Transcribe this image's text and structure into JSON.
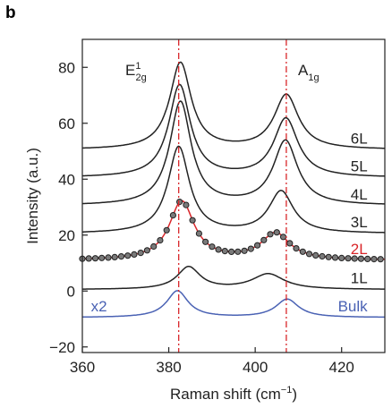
{
  "chart_data": {
    "type": "line",
    "panel_label": "b",
    "title": "",
    "xlabel": "Raman shift (cm⁻¹)",
    "ylabel": "Intensity (a.u.)",
    "xlim": [
      360,
      430
    ],
    "ylim": [
      -22,
      90
    ],
    "x_ticks": [
      360,
      380,
      400,
      420
    ],
    "y_ticks": [
      -20,
      0,
      20,
      40,
      60,
      80
    ],
    "peak_labels": [
      {
        "base": "E",
        "sub": "2g",
        "sup": "1",
        "x": 382.3
      },
      {
        "base": "A",
        "sub": "1g",
        "x": 407.2
      }
    ],
    "reference_lines_x": [
      382.3,
      407.2
    ],
    "reference_line_color": "#d9262a",
    "series": [
      {
        "name": "6L",
        "color": "#222222",
        "baseline": 50.5,
        "peaks": [
          {
            "x": 382.7,
            "height": 31,
            "width": 3.0
          },
          {
            "x": 407.2,
            "height": 19.5,
            "width": 3.4
          }
        ]
      },
      {
        "name": "5L",
        "color": "#222222",
        "baseline": 40.5,
        "peaks": [
          {
            "x": 382.5,
            "height": 33,
            "width": 3.0
          },
          {
            "x": 407.1,
            "height": 21,
            "width": 3.4
          }
        ]
      },
      {
        "name": "4L",
        "color": "#222222",
        "baseline": 30.5,
        "peaks": [
          {
            "x": 382.7,
            "height": 37,
            "width": 3.0
          },
          {
            "x": 407.0,
            "height": 23,
            "width": 3.4
          }
        ]
      },
      {
        "name": "3L",
        "color": "#222222",
        "baseline": 20.5,
        "peaks": [
          {
            "x": 382.3,
            "height": 31,
            "width": 3.0
          },
          {
            "x": 406.0,
            "height": 15,
            "width": 3.4
          }
        ]
      },
      {
        "name": "2L",
        "color": "#d9262a",
        "baseline": 11,
        "peaks": [
          {
            "x": 383.0,
            "height": 21,
            "width": 3.5
          },
          {
            "x": 404.7,
            "height": 9.5,
            "width": 4.0
          }
        ],
        "markers": true
      },
      {
        "name": "1L",
        "color": "#222222",
        "baseline": 0.5,
        "peaks": [
          {
            "x": 384.6,
            "height": 8,
            "width": 3.2
          },
          {
            "x": 403.0,
            "height": 5.5,
            "width": 4.5
          }
        ]
      },
      {
        "name": "Bulk",
        "color": "#4a62b4",
        "baseline": -9.5,
        "peaks": [
          {
            "x": 382.0,
            "height": 9.5,
            "width": 3.0
          },
          {
            "x": 407.4,
            "height": 6.5,
            "width": 3.2
          }
        ],
        "scale_label": "x2"
      }
    ]
  }
}
